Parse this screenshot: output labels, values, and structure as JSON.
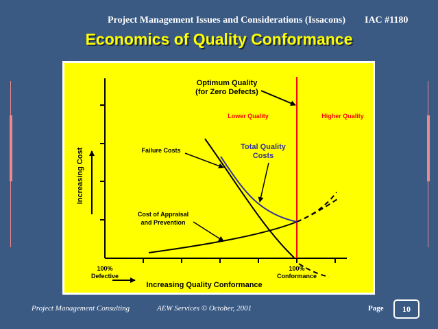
{
  "header": {
    "title": "Project Management Issues and Considerations (Issacons)",
    "code": "IAC #1180"
  },
  "slide_title": "Economics of Quality Conformance",
  "diagram": {
    "optimum_line1": "Optimum Quality",
    "optimum_line2": "(for Zero Defects)",
    "lower_quality": "Lower Quality",
    "higher_quality": "Higher Quality",
    "failure_costs": "Failure Costs",
    "total_line1": "Total Quality",
    "total_line2": "Costs",
    "appraisal_line1": "Cost of Appraisal",
    "appraisal_line2": "and Prevention",
    "y_axis_label": "Increasing Cost",
    "x_axis_label": "Increasing Quality Conformance",
    "x_left_line1": "100%",
    "x_left_line2": "Defective",
    "x_right_line1": "100%",
    "x_right_line2": "Conformance",
    "colors": {
      "background": "#ffff00",
      "optimum_line": "#ff0000",
      "total_curve": "#333399",
      "quality_text": "#ff0000"
    }
  },
  "footer": {
    "left": "Project Management Consulting",
    "middle": "AEW  Services © October, 2001",
    "page_label": "Page",
    "page_number": "10"
  }
}
